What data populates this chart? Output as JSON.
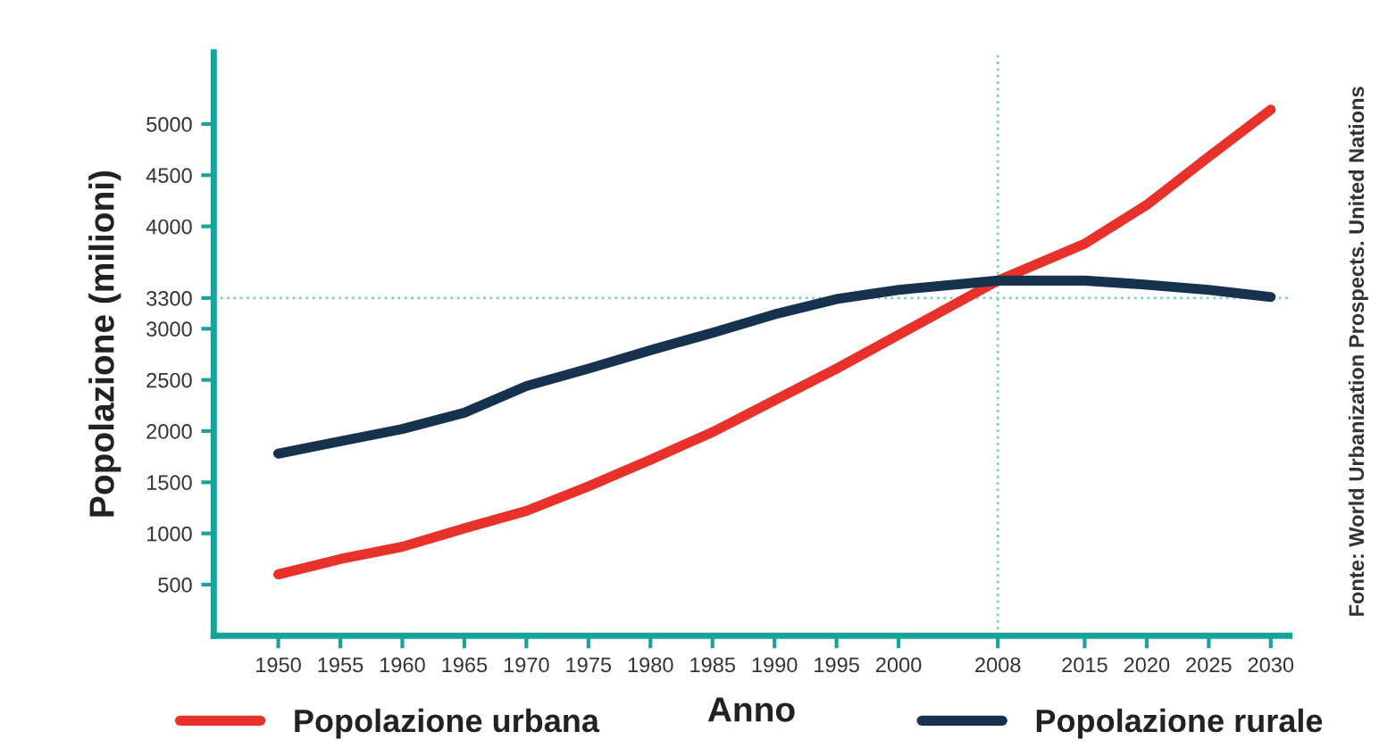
{
  "chart_data": {
    "type": "line",
    "xlabel": "Anno",
    "ylabel": "Popolazione (milioni)",
    "x": [
      1950,
      1955,
      1960,
      1965,
      1970,
      1975,
      1980,
      1985,
      1990,
      1995,
      2000,
      2008,
      2015,
      2020,
      2025,
      2030
    ],
    "series": [
      {
        "name": "Popolazione urbana",
        "color": "#e8312a",
        "values": [
          600,
          750,
          870,
          1050,
          1220,
          1460,
          1720,
          1990,
          2300,
          2610,
          2940,
          3470,
          3830,
          4210,
          4680,
          5140
        ]
      },
      {
        "name": "Popolazione rurale",
        "color": "#17324f",
        "values": [
          1780,
          1900,
          2020,
          2180,
          2440,
          2610,
          2790,
          2960,
          3140,
          3290,
          3380,
          3470,
          3470,
          3430,
          3380,
          3310
        ]
      }
    ],
    "xlim": [
      1944.8,
      2031.5
    ],
    "xticks": [
      1950,
      1955,
      1960,
      1965,
      1970,
      1975,
      1980,
      1985,
      1990,
      1995,
      2000,
      2008,
      2015,
      2020,
      2025,
      2030
    ],
    "ylim": [
      0,
      5700
    ],
    "yticks": [
      500,
      1000,
      1500,
      2000,
      2500,
      3000,
      3300,
      4000,
      4500,
      5000
    ],
    "ref_lines": [
      {
        "axis": "y",
        "value": 3300,
        "color": "#7fcfc0",
        "line_style": "dotted"
      },
      {
        "axis": "x",
        "value": 2008,
        "color": "#7fcfc0",
        "line_style": "dotted"
      }
    ],
    "annotations": [
      "Fonte: World Urbanization Prospects. United Nations"
    ],
    "grid": false,
    "legend": "bottom",
    "marker": "none",
    "line_style": "solid"
  }
}
